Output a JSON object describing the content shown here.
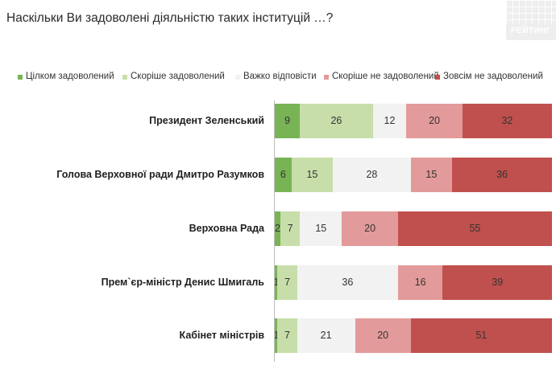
{
  "title": "Наскільки Ви задоволені діяльністю таких інституцій …?",
  "logo_text": "РЕЙТИНГ",
  "chart_data": {
    "type": "bar",
    "orientation": "horizontal",
    "stacked": true,
    "title": "Наскільки Ви задоволені діяльністю таких інституцій …?",
    "legend_position": "top",
    "categories": [
      "Президент Зеленський",
      "Голова Верховної ради Дмитро Разумков",
      "Верховна Рада",
      "Прем`єр-міністр Денис Шмигаль",
      "Кабінет міністрів"
    ],
    "series": [
      {
        "name": "Цілком задоволений",
        "color": "#78b456",
        "values": [
          9,
          6,
          2,
          1,
          1
        ]
      },
      {
        "name": "Скоріше задоволений",
        "color": "#c8deaa",
        "values": [
          26,
          15,
          7,
          7,
          7
        ]
      },
      {
        "name": "Важко відповісти",
        "color": "#f2f2f2",
        "values": [
          12,
          28,
          15,
          36,
          21
        ]
      },
      {
        "name": "Скоріше не задоволений",
        "color": "#e39a9a",
        "values": [
          20,
          15,
          20,
          16,
          20
        ]
      },
      {
        "name": "Зовсім не задоволений",
        "color": "#c0504d",
        "values": [
          32,
          36,
          55,
          39,
          51
        ]
      }
    ]
  }
}
